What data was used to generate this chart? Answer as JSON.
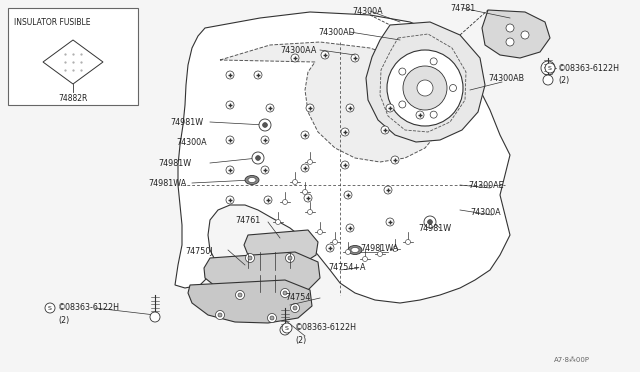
{
  "bg_color": "#f5f5f5",
  "line_color": "#333333",
  "text_color": "#222222",
  "inset_title": "INSULATOR FUSIBLE",
  "inset_part": "74882R",
  "footer_text": "A7·8⁂00P"
}
